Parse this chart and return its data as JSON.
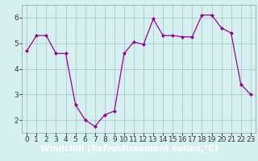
{
  "x": [
    0,
    1,
    2,
    3,
    4,
    5,
    6,
    7,
    8,
    9,
    10,
    11,
    12,
    13,
    14,
    15,
    16,
    17,
    18,
    19,
    20,
    21,
    22,
    23
  ],
  "y": [
    4.7,
    5.3,
    5.3,
    4.6,
    4.6,
    2.6,
    2.0,
    1.75,
    2.2,
    2.35,
    4.6,
    5.05,
    4.95,
    5.95,
    5.3,
    5.3,
    5.25,
    5.25,
    6.1,
    6.1,
    5.6,
    5.4,
    3.4,
    3.0
  ],
  "line_color": "#990099",
  "marker": "D",
  "marker_size": 2.0,
  "bg_color": "#d6f0f0",
  "grid_color": "#aacccc",
  "xlabel": "Windchill (Refroidissement éolien,°C)",
  "xlabel_color": "#ffffff",
  "xlabel_bg": "#990099",
  "ylim": [
    1.5,
    6.5
  ],
  "xlim": [
    -0.5,
    23.5
  ],
  "yticks": [
    2,
    3,
    4,
    5,
    6
  ],
  "xtick_labels": [
    "0",
    "1",
    "2",
    "3",
    "4",
    "5",
    "6",
    "7",
    "8",
    "9",
    "10",
    "11",
    "12",
    "13",
    "14",
    "15",
    "16",
    "17",
    "18",
    "19",
    "20",
    "21",
    "22",
    "23"
  ],
  "tick_fontsize": 6.5,
  "xlabel_fontsize": 7.5,
  "spine_color": "#999999"
}
